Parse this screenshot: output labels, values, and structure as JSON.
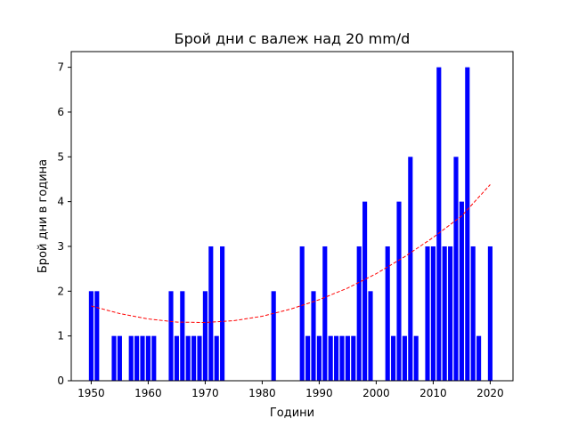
{
  "chart_data": {
    "type": "bar",
    "title": "Брой дни с валеж над 20 mm/d",
    "xlabel": "Години",
    "ylabel": "Брой дни в година",
    "xlim": [
      1946.5,
      2024
    ],
    "ylim": [
      0,
      7.35
    ],
    "xticks": [
      1950,
      1960,
      1970,
      1980,
      1990,
      2000,
      2010,
      2020
    ],
    "yticks": [
      0,
      1,
      2,
      3,
      4,
      5,
      6,
      7
    ],
    "bar_color": "#0000ff",
    "trend_color": "#ff0000",
    "series": [
      {
        "x": [
          1950,
          1951,
          1954,
          1955,
          1957,
          1958,
          1959,
          1960,
          1961,
          1964,
          1965,
          1966,
          1967,
          1968,
          1969,
          1970,
          1971,
          1972,
          1973,
          1982,
          1987,
          1988,
          1989,
          1990,
          1991,
          1992,
          1993,
          1994,
          1995,
          1996,
          1997,
          1998,
          1999,
          2002,
          2003,
          2004,
          2005,
          2006,
          2007,
          2009,
          2010,
          2011,
          2012,
          2013,
          2014,
          2015,
          2016,
          2017,
          2018,
          2020
        ],
        "values": [
          2,
          2,
          1,
          1,
          1,
          1,
          1,
          1,
          1,
          2,
          1,
          2,
          1,
          1,
          1,
          2,
          3,
          1,
          3,
          2,
          3,
          1,
          2,
          1,
          3,
          1,
          1,
          1,
          1,
          1,
          3,
          4,
          2,
          3,
          1,
          4,
          1,
          5,
          1,
          3,
          3,
          7,
          3,
          3,
          5,
          4,
          7,
          3,
          1,
          3
        ]
      }
    ],
    "trend": {
      "style": "dashed",
      "x": [
        1950,
        1955,
        1960,
        1965,
        1970,
        1975,
        1980,
        1985,
        1990,
        1995,
        2000,
        2005,
        2010,
        2015,
        2020
      ],
      "values": [
        1.67,
        1.5,
        1.38,
        1.31,
        1.3,
        1.34,
        1.44,
        1.6,
        1.81,
        2.07,
        2.39,
        2.77,
        3.2,
        3.68,
        4.38
      ]
    }
  }
}
